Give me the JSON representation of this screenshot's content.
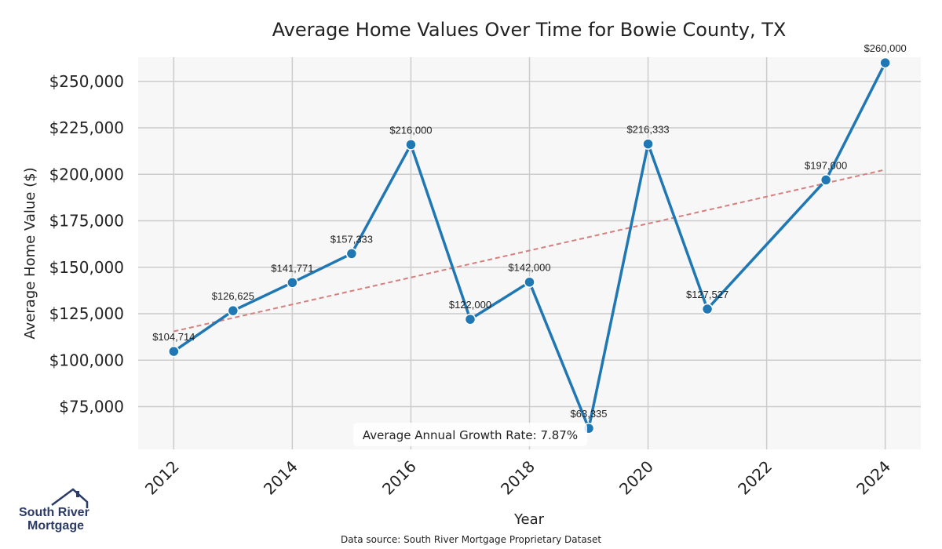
{
  "chart_data": {
    "type": "line",
    "title": "Average Home Values Over Time for Bowie County, TX",
    "xlabel": "Year",
    "ylabel": "Average Home Value ($)",
    "x": [
      2012,
      2013,
      2014,
      2015,
      2016,
      2017,
      2018,
      2019,
      2020,
      2021,
      2023,
      2024
    ],
    "series": [
      {
        "name": "Average Home Value",
        "color": "#1f77b4",
        "values": [
          104714,
          126625,
          141771,
          157333,
          216000,
          122000,
          142000,
          63335,
          216333,
          127527,
          197000,
          260000
        ],
        "labels": [
          "$104,714",
          "$126,625",
          "$141,771",
          "$157,333",
          "$216,000",
          "$122,000",
          "$142,000",
          "$63,335",
          "$216,333",
          "$127,527",
          "$197,000",
          "$260,000"
        ]
      }
    ],
    "trendline": {
      "color": "#d67f7f",
      "start": [
        2012,
        115500
      ],
      "end": [
        2024,
        202500
      ]
    },
    "xlim": [
      2011.4,
      2024.6
    ],
    "ylim": [
      52000,
      263000
    ],
    "x_ticks": [
      2012,
      2014,
      2016,
      2018,
      2020,
      2022,
      2024
    ],
    "x_tick_labels": [
      "2012",
      "2014",
      "2016",
      "2018",
      "2020",
      "2022",
      "2024"
    ],
    "y_ticks": [
      75000,
      100000,
      125000,
      150000,
      175000,
      200000,
      225000,
      250000
    ],
    "y_tick_labels": [
      "$75,000",
      "$100,000",
      "$125,000",
      "$150,000",
      "$175,000",
      "$200,000",
      "$225,000",
      "$250,000"
    ],
    "grid": true,
    "annotation": "Average Annual Growth Rate: 7.87%"
  },
  "footer": {
    "source": "Data source: South River Mortgage Proprietary Dataset"
  },
  "logo": {
    "line1": "South River",
    "line2": "Mortgage",
    "color": "#2b3a67"
  }
}
